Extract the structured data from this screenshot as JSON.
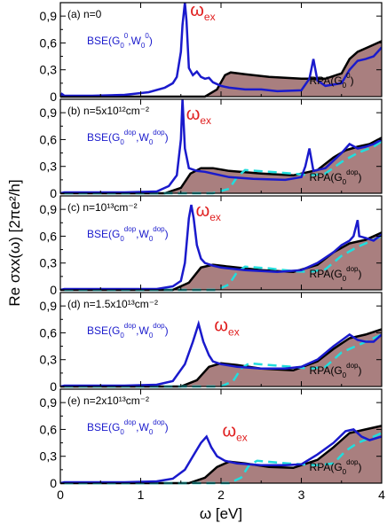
{
  "chart_data": {
    "type": "line",
    "xlabel": "ω [eV]",
    "ylabel": "Re σxx(ω) [2πe²/h]",
    "xlim": [
      0,
      4
    ],
    "ylim": [
      0,
      1.05
    ],
    "x_ticks": [
      "0",
      "1",
      "2",
      "3",
      "4"
    ],
    "y_ticks": [
      "0",
      "0,3",
      "0,6",
      "0,9"
    ],
    "annotations": {
      "omega_ex": "ω",
      "omega_ex_sub": "ex"
    },
    "panels": [
      {
        "label": "(a) n=0",
        "bse_label": [
          "BSE(G",
          "0",
          "0",
          ",W",
          "0",
          "0",
          ")"
        ],
        "rpa_label": [
          "RPA(G",
          "0",
          "0",
          ")"
        ],
        "wex": [
          1.55,
          0.88
        ],
        "rpa": [
          [
            0,
            0
          ],
          [
            1.2,
            0
          ],
          [
            1.8,
            0
          ],
          [
            1.95,
            0.08
          ],
          [
            2.05,
            0.24
          ],
          [
            2.12,
            0.27
          ],
          [
            2.3,
            0.25
          ],
          [
            2.6,
            0.22
          ],
          [
            3.0,
            0.2
          ],
          [
            3.3,
            0.2
          ],
          [
            3.5,
            0.26
          ],
          [
            3.6,
            0.42
          ],
          [
            3.7,
            0.5
          ],
          [
            3.85,
            0.56
          ],
          [
            4.0,
            0.62
          ]
        ],
        "bse": [
          [
            0,
            0
          ],
          [
            0.02,
            0.03
          ],
          [
            0.05,
            0.01
          ],
          [
            0.4,
            0.01
          ],
          [
            0.8,
            0.02
          ],
          [
            1.1,
            0.05
          ],
          [
            1.3,
            0.1
          ],
          [
            1.4,
            0.15
          ],
          [
            1.45,
            0.22
          ],
          [
            1.5,
            0.5
          ],
          [
            1.52,
            0.8
          ],
          [
            1.55,
            1.05
          ],
          [
            1.57,
            0.85
          ],
          [
            1.6,
            0.32
          ],
          [
            1.65,
            0.24
          ],
          [
            1.7,
            0.28
          ],
          [
            1.75,
            0.22
          ],
          [
            1.8,
            0.2
          ],
          [
            1.85,
            0.21
          ],
          [
            1.9,
            0.16
          ],
          [
            2.0,
            0.12
          ],
          [
            2.1,
            0.1
          ],
          [
            2.3,
            0.08
          ],
          [
            2.5,
            0.08
          ],
          [
            2.7,
            0.06
          ],
          [
            3.0,
            0.07
          ],
          [
            3.1,
            0.2
          ],
          [
            3.15,
            0.42
          ],
          [
            3.2,
            0.18
          ],
          [
            3.3,
            0.12
          ],
          [
            3.5,
            0.15
          ],
          [
            3.6,
            0.3
          ],
          [
            3.7,
            0.4
          ],
          [
            3.8,
            0.42
          ],
          [
            3.9,
            0.45
          ],
          [
            4.0,
            0.55
          ]
        ],
        "dashed": []
      },
      {
        "label": "(b) n=5x10¹²cm⁻²",
        "bse_label": [
          "BSE(G",
          "0",
          "dop",
          ",W",
          "0",
          "dop",
          ")"
        ],
        "rpa_label": [
          "RPA(G",
          "0",
          "dop",
          ")"
        ],
        "wex": [
          1.5,
          0.8
        ],
        "rpa": [
          [
            0,
            0
          ],
          [
            1.3,
            0
          ],
          [
            1.5,
            0.06
          ],
          [
            1.62,
            0.22
          ],
          [
            1.75,
            0.28
          ],
          [
            1.9,
            0.28
          ],
          [
            2.1,
            0.25
          ],
          [
            2.5,
            0.22
          ],
          [
            2.9,
            0.2
          ],
          [
            3.2,
            0.26
          ],
          [
            3.4,
            0.4
          ],
          [
            3.55,
            0.48
          ],
          [
            3.7,
            0.52
          ],
          [
            3.85,
            0.55
          ],
          [
            4.0,
            0.62
          ]
        ],
        "bse": [
          [
            0,
            0
          ],
          [
            0.05,
            0.01
          ],
          [
            0.8,
            0.01
          ],
          [
            1.2,
            0.02
          ],
          [
            1.35,
            0.08
          ],
          [
            1.45,
            0.2
          ],
          [
            1.5,
            0.6
          ],
          [
            1.52,
            1.05
          ],
          [
            1.55,
            0.5
          ],
          [
            1.6,
            0.28
          ],
          [
            1.7,
            0.25
          ],
          [
            1.8,
            0.24
          ],
          [
            1.9,
            0.22
          ],
          [
            2.1,
            0.18
          ],
          [
            2.4,
            0.16
          ],
          [
            2.8,
            0.15
          ],
          [
            3.0,
            0.18
          ],
          [
            3.05,
            0.3
          ],
          [
            3.1,
            0.5
          ],
          [
            3.15,
            0.25
          ],
          [
            3.3,
            0.28
          ],
          [
            3.5,
            0.45
          ],
          [
            3.6,
            0.55
          ],
          [
            3.7,
            0.5
          ],
          [
            3.8,
            0.52
          ],
          [
            3.9,
            0.55
          ],
          [
            4.0,
            0.6
          ]
        ],
        "dashed": [
          [
            0.05,
            0
          ],
          [
            1.9,
            0
          ],
          [
            2.1,
            0.05
          ],
          [
            2.2,
            0.18
          ],
          [
            2.3,
            0.26
          ],
          [
            2.6,
            0.24
          ],
          [
            2.9,
            0.22
          ],
          [
            3.1,
            0.2
          ],
          [
            3.3,
            0.22
          ],
          [
            3.5,
            0.35
          ],
          [
            3.6,
            0.4
          ],
          [
            3.7,
            0.45
          ],
          [
            3.9,
            0.52
          ],
          [
            4.0,
            0.58
          ]
        ]
      },
      {
        "label": "(c) n=10¹³cm⁻²",
        "bse_label": [
          "BSE(G",
          "0",
          "dop",
          ",W",
          "0",
          "dop",
          ")"
        ],
        "rpa_label": [
          "RPA(G",
          "0",
          "dop",
          ")"
        ],
        "wex": [
          1.62,
          0.8
        ],
        "rpa": [
          [
            0,
            0
          ],
          [
            1.4,
            0
          ],
          [
            1.6,
            0.08
          ],
          [
            1.75,
            0.25
          ],
          [
            1.9,
            0.28
          ],
          [
            2.1,
            0.26
          ],
          [
            2.5,
            0.22
          ],
          [
            2.9,
            0.2
          ],
          [
            3.2,
            0.28
          ],
          [
            3.4,
            0.42
          ],
          [
            3.6,
            0.52
          ],
          [
            3.8,
            0.56
          ],
          [
            4.0,
            0.64
          ]
        ],
        "bse": [
          [
            0,
            0
          ],
          [
            0.05,
            0.01
          ],
          [
            0.8,
            0.01
          ],
          [
            1.2,
            0.01
          ],
          [
            1.4,
            0.04
          ],
          [
            1.5,
            0.1
          ],
          [
            1.55,
            0.3
          ],
          [
            1.6,
            0.8
          ],
          [
            1.63,
            0.95
          ],
          [
            1.66,
            0.8
          ],
          [
            1.7,
            0.5
          ],
          [
            1.75,
            0.35
          ],
          [
            1.8,
            0.3
          ],
          [
            1.9,
            0.27
          ],
          [
            2.0,
            0.25
          ],
          [
            2.3,
            0.22
          ],
          [
            2.7,
            0.2
          ],
          [
            3.0,
            0.22
          ],
          [
            3.2,
            0.3
          ],
          [
            3.4,
            0.42
          ],
          [
            3.5,
            0.5
          ],
          [
            3.6,
            0.55
          ],
          [
            3.65,
            0.6
          ],
          [
            3.7,
            0.78
          ],
          [
            3.72,
            0.6
          ],
          [
            3.8,
            0.58
          ],
          [
            3.9,
            0.55
          ],
          [
            4.0,
            0.62
          ]
        ],
        "dashed": [
          [
            0.05,
            0
          ],
          [
            1.95,
            0
          ],
          [
            2.1,
            0.06
          ],
          [
            2.2,
            0.2
          ],
          [
            2.3,
            0.26
          ],
          [
            2.6,
            0.24
          ],
          [
            2.9,
            0.21
          ],
          [
            3.1,
            0.2
          ],
          [
            3.3,
            0.23
          ],
          [
            3.5,
            0.38
          ],
          [
            3.7,
            0.48
          ],
          [
            3.9,
            0.56
          ],
          [
            4.0,
            0.6
          ]
        ]
      },
      {
        "label": "(d) n=1.5x10¹³cm⁻²",
        "bse_label": [
          "BSE(G",
          "0",
          "dop",
          ",W",
          "0",
          "dop",
          ")"
        ],
        "rpa_label": [
          "RPA(G",
          "0",
          "dop",
          ")"
        ],
        "wex": [
          1.85,
          0.6
        ],
        "rpa": [
          [
            0,
            0
          ],
          [
            1.5,
            0
          ],
          [
            1.7,
            0.07
          ],
          [
            1.85,
            0.22
          ],
          [
            2.0,
            0.26
          ],
          [
            2.2,
            0.24
          ],
          [
            2.5,
            0.2
          ],
          [
            2.9,
            0.18
          ],
          [
            3.2,
            0.28
          ],
          [
            3.4,
            0.42
          ],
          [
            3.6,
            0.54
          ],
          [
            3.8,
            0.58
          ],
          [
            4.0,
            0.64
          ]
        ],
        "bse": [
          [
            0,
            0
          ],
          [
            0.05,
            0.01
          ],
          [
            0.8,
            0.01
          ],
          [
            1.2,
            0.02
          ],
          [
            1.4,
            0.06
          ],
          [
            1.55,
            0.25
          ],
          [
            1.65,
            0.5
          ],
          [
            1.72,
            0.7
          ],
          [
            1.78,
            0.5
          ],
          [
            1.85,
            0.35
          ],
          [
            1.9,
            0.28
          ],
          [
            2.0,
            0.25
          ],
          [
            2.2,
            0.22
          ],
          [
            2.5,
            0.2
          ],
          [
            2.8,
            0.2
          ],
          [
            3.0,
            0.22
          ],
          [
            3.2,
            0.3
          ],
          [
            3.4,
            0.45
          ],
          [
            3.6,
            0.58
          ],
          [
            3.7,
            0.52
          ],
          [
            3.8,
            0.5
          ],
          [
            3.9,
            0.5
          ],
          [
            4.0,
            0.58
          ]
        ],
        "dashed": [
          [
            0.05,
            0
          ],
          [
            2.0,
            0
          ],
          [
            2.15,
            0.06
          ],
          [
            2.25,
            0.2
          ],
          [
            2.35,
            0.26
          ],
          [
            2.6,
            0.24
          ],
          [
            2.9,
            0.22
          ],
          [
            3.1,
            0.2
          ],
          [
            3.3,
            0.22
          ],
          [
            3.5,
            0.38
          ],
          [
            3.7,
            0.46
          ],
          [
            3.9,
            0.54
          ],
          [
            4.0,
            0.58
          ]
        ]
      },
      {
        "label": "(e) n=2x10¹³cm⁻²",
        "bse_label": [
          "BSE(G",
          "0",
          "dop",
          ",W",
          "0",
          "dop",
          ")"
        ],
        "rpa_label": [
          "RPA(G",
          "0",
          "dop",
          ")"
        ],
        "wex": [
          1.95,
          0.5
        ],
        "rpa": [
          [
            0,
            0
          ],
          [
            1.6,
            0
          ],
          [
            1.8,
            0.06
          ],
          [
            1.95,
            0.18
          ],
          [
            2.1,
            0.24
          ],
          [
            2.3,
            0.22
          ],
          [
            2.6,
            0.18
          ],
          [
            2.9,
            0.17
          ],
          [
            3.2,
            0.26
          ],
          [
            3.4,
            0.4
          ],
          [
            3.6,
            0.56
          ],
          [
            3.8,
            0.6
          ],
          [
            4.0,
            0.64
          ]
        ],
        "bse": [
          [
            0,
            0
          ],
          [
            0.05,
            0.01
          ],
          [
            0.8,
            0.01
          ],
          [
            1.2,
            0.02
          ],
          [
            1.4,
            0.05
          ],
          [
            1.55,
            0.15
          ],
          [
            1.65,
            0.3
          ],
          [
            1.75,
            0.45
          ],
          [
            1.82,
            0.52
          ],
          [
            1.88,
            0.4
          ],
          [
            1.95,
            0.3
          ],
          [
            2.05,
            0.25
          ],
          [
            2.2,
            0.22
          ],
          [
            2.5,
            0.2
          ],
          [
            2.8,
            0.2
          ],
          [
            3.0,
            0.21
          ],
          [
            3.2,
            0.32
          ],
          [
            3.4,
            0.45
          ],
          [
            3.55,
            0.58
          ],
          [
            3.65,
            0.6
          ],
          [
            3.75,
            0.52
          ],
          [
            3.85,
            0.48
          ],
          [
            4.0,
            0.52
          ]
        ],
        "dashed": [
          [
            0.05,
            0
          ],
          [
            2.1,
            0
          ],
          [
            2.25,
            0.06
          ],
          [
            2.35,
            0.2
          ],
          [
            2.45,
            0.25
          ],
          [
            2.7,
            0.23
          ],
          [
            3.0,
            0.21
          ],
          [
            3.2,
            0.2
          ],
          [
            3.4,
            0.22
          ],
          [
            3.55,
            0.36
          ],
          [
            3.7,
            0.45
          ],
          [
            3.9,
            0.52
          ],
          [
            4.0,
            0.56
          ]
        ]
      }
    ]
  }
}
